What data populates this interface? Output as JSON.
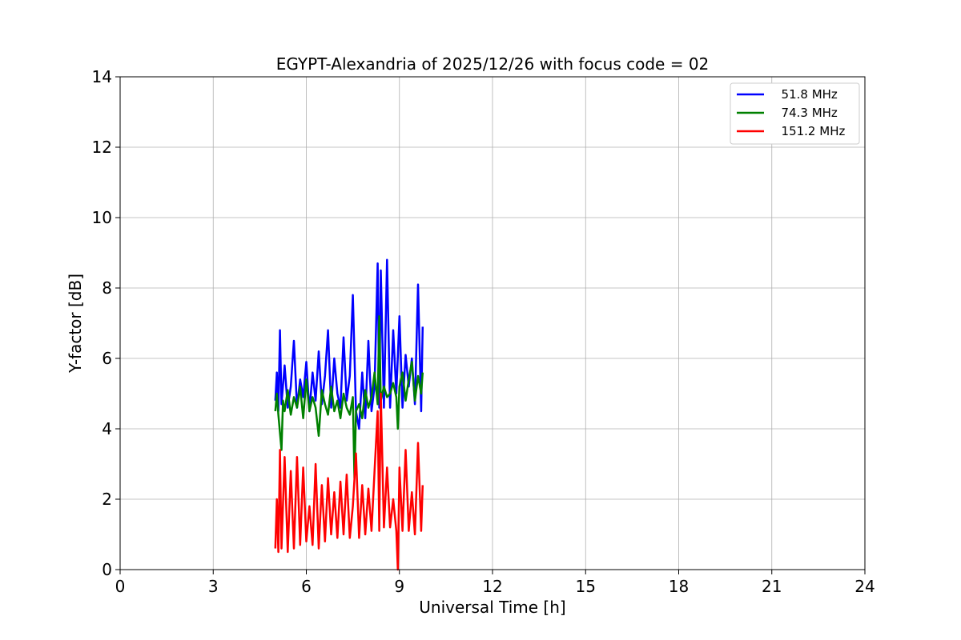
{
  "chart_data": {
    "type": "line",
    "title": "EGYPT-Alexandria of 2025/12/26 with focus code = 02",
    "xlabel": "Universal Time [h]",
    "ylabel": "Y-factor [dB]",
    "xlim": [
      0,
      24
    ],
    "ylim": [
      0,
      14
    ],
    "xticks": [
      "0",
      "3",
      "6",
      "9",
      "12",
      "15",
      "18",
      "21",
      "24"
    ],
    "yticks": [
      "0",
      "2",
      "4",
      "6",
      "8",
      "10",
      "12",
      "14"
    ],
    "grid": true,
    "legend_position": "top-right",
    "series": [
      {
        "name": "  51.8 MHz",
        "color": "#0000ff",
        "x": [
          5.0,
          5.05,
          5.1,
          5.15,
          5.2,
          5.3,
          5.4,
          5.5,
          5.6,
          5.7,
          5.8,
          5.9,
          6.0,
          6.1,
          6.2,
          6.3,
          6.4,
          6.5,
          6.6,
          6.7,
          6.8,
          6.9,
          7.0,
          7.1,
          7.2,
          7.3,
          7.4,
          7.5,
          7.6,
          7.7,
          7.8,
          7.9,
          8.0,
          8.1,
          8.2,
          8.3,
          8.35,
          8.4,
          8.5,
          8.6,
          8.7,
          8.8,
          8.9,
          9.0,
          9.1,
          9.2,
          9.3,
          9.4,
          9.5,
          9.6,
          9.7,
          9.75
        ],
        "values": [
          4.8,
          5.6,
          4.5,
          6.8,
          4.7,
          5.8,
          4.6,
          5.2,
          6.5,
          4.6,
          5.4,
          4.9,
          5.9,
          4.5,
          5.6,
          4.8,
          6.2,
          4.7,
          5.5,
          6.8,
          4.6,
          6.0,
          5.0,
          4.6,
          6.6,
          4.8,
          5.5,
          7.8,
          4.5,
          4.0,
          5.6,
          4.3,
          6.5,
          4.5,
          5.2,
          8.7,
          4.6,
          8.5,
          4.6,
          8.8,
          4.6,
          6.8,
          5.0,
          7.2,
          4.6,
          6.1,
          5.2,
          6.0,
          4.7,
          8.1,
          4.5,
          6.9
        ]
      },
      {
        "name": "  74.3 MHz",
        "color": "#008000",
        "x": [
          5.0,
          5.05,
          5.1,
          5.2,
          5.25,
          5.3,
          5.4,
          5.5,
          5.6,
          5.7,
          5.8,
          5.9,
          6.0,
          6.1,
          6.2,
          6.3,
          6.4,
          6.5,
          6.6,
          6.7,
          6.8,
          6.9,
          7.0,
          7.1,
          7.2,
          7.3,
          7.4,
          7.5,
          7.55,
          7.6,
          7.7,
          7.8,
          7.9,
          8.0,
          8.1,
          8.2,
          8.3,
          8.35,
          8.4,
          8.5,
          8.6,
          8.7,
          8.8,
          8.9,
          8.95,
          9.0,
          9.1,
          9.2,
          9.3,
          9.4,
          9.5,
          9.6,
          9.7,
          9.75
        ],
        "values": [
          4.5,
          5.0,
          4.4,
          3.4,
          4.8,
          4.5,
          5.1,
          4.4,
          4.9,
          4.6,
          5.2,
          4.3,
          5.4,
          4.5,
          4.9,
          4.6,
          3.8,
          5.1,
          4.7,
          4.4,
          5.2,
          4.5,
          4.8,
          4.3,
          5.0,
          4.6,
          4.4,
          4.9,
          2.6,
          4.5,
          4.7,
          4.3,
          5.1,
          4.6,
          4.9,
          5.6,
          4.7,
          7.2,
          4.8,
          5.2,
          4.9,
          5.0,
          5.3,
          4.9,
          4.0,
          5.2,
          5.6,
          4.8,
          5.4,
          5.9,
          4.8,
          5.5,
          5.0,
          5.6
        ]
      },
      {
        "name": "  151.2 MHz",
        "color": "#ff0000",
        "x": [
          5.0,
          5.05,
          5.1,
          5.15,
          5.2,
          5.3,
          5.4,
          5.5,
          5.6,
          5.7,
          5.8,
          5.9,
          6.0,
          6.1,
          6.2,
          6.3,
          6.4,
          6.5,
          6.6,
          6.7,
          6.8,
          6.9,
          7.0,
          7.1,
          7.2,
          7.3,
          7.4,
          7.5,
          7.6,
          7.7,
          7.8,
          7.9,
          8.0,
          8.1,
          8.2,
          8.3,
          8.35,
          8.4,
          8.5,
          8.6,
          8.7,
          8.8,
          8.9,
          8.95,
          9.0,
          9.1,
          9.2,
          9.3,
          9.4,
          9.5,
          9.6,
          9.7,
          9.75
        ],
        "values": [
          0.6,
          2.0,
          0.5,
          3.4,
          0.6,
          3.2,
          0.5,
          2.8,
          0.6,
          3.2,
          0.7,
          2.9,
          0.8,
          1.8,
          0.7,
          3.0,
          0.6,
          2.4,
          0.8,
          2.6,
          1.0,
          2.2,
          0.9,
          2.5,
          1.0,
          2.7,
          0.9,
          1.8,
          3.3,
          0.9,
          2.4,
          1.0,
          2.3,
          1.1,
          2.8,
          4.5,
          1.1,
          5.0,
          1.2,
          2.9,
          1.2,
          2.0,
          1.1,
          0.0,
          2.9,
          1.1,
          3.4,
          1.1,
          2.2,
          1.0,
          3.6,
          1.1,
          2.4
        ]
      }
    ]
  }
}
